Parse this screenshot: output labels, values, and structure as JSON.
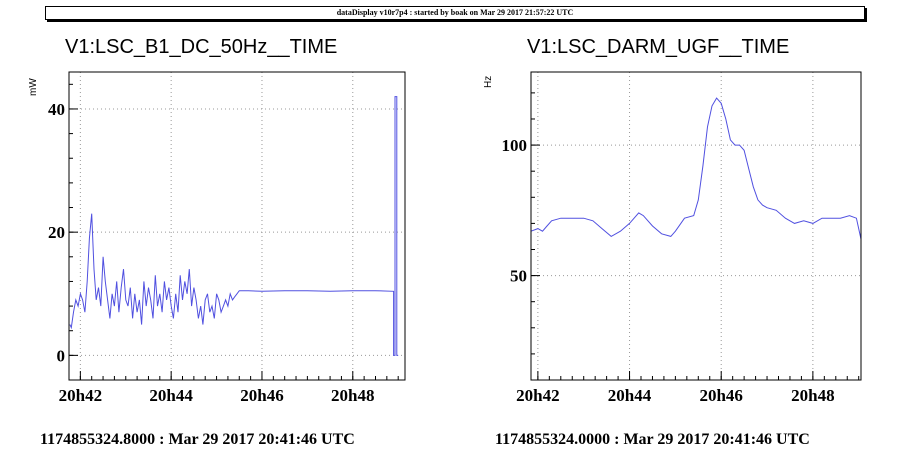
{
  "header": {
    "text": "dataDisplay v10r7p4 : started by boak on Mar 29 2017 21:57:22 UTC"
  },
  "chart_data": [
    {
      "type": "line",
      "title": "V1:LSC_B1_DC_50Hz__TIME",
      "ylabel": "mW",
      "footer": "1174855324.8000 : Mar 29 2017 20:41:46 UTC",
      "color": "#5050e0",
      "xlim": [
        41.75,
        49.15
      ],
      "ylim": [
        -4,
        46
      ],
      "xticks": [
        {
          "v": 42,
          "label": "20h42"
        },
        {
          "v": 44,
          "label": "20h44"
        },
        {
          "v": 46,
          "label": "20h46"
        },
        {
          "v": 48,
          "label": "20h48"
        }
      ],
      "yticks": [
        {
          "v": 0,
          "label": "0"
        },
        {
          "v": 20,
          "label": "20"
        },
        {
          "v": 40,
          "label": "40"
        }
      ],
      "x": [
        41.77,
        41.8,
        41.85,
        41.9,
        41.95,
        42.0,
        42.05,
        42.1,
        42.15,
        42.2,
        42.25,
        42.3,
        42.35,
        42.4,
        42.45,
        42.5,
        42.55,
        42.6,
        42.65,
        42.7,
        42.75,
        42.8,
        42.85,
        42.9,
        42.95,
        43.0,
        43.05,
        43.1,
        43.15,
        43.2,
        43.25,
        43.3,
        43.35,
        43.4,
        43.45,
        43.5,
        43.55,
        43.6,
        43.65,
        43.7,
        43.75,
        43.8,
        43.85,
        43.9,
        43.95,
        44.0,
        44.05,
        44.1,
        44.15,
        44.2,
        44.25,
        44.3,
        44.35,
        44.4,
        44.45,
        44.5,
        44.55,
        44.6,
        44.65,
        44.7,
        44.75,
        44.8,
        44.85,
        44.9,
        44.95,
        45.0,
        45.05,
        45.1,
        45.15,
        45.2,
        45.25,
        45.3,
        45.35,
        45.4,
        45.45,
        45.5,
        45.7,
        46.0,
        46.5,
        47.0,
        47.5,
        48.0,
        48.5,
        48.9,
        48.9,
        48.93,
        48.93,
        48.97,
        48.97,
        49.0
      ],
      "y": [
        5,
        4.5,
        7,
        9,
        8,
        10,
        9,
        7,
        12,
        19,
        23,
        14,
        9,
        11,
        8,
        16,
        12,
        9,
        6,
        10,
        8,
        12,
        7,
        11,
        14,
        9,
        8,
        11,
        6,
        10,
        7,
        9,
        5,
        12,
        8,
        11,
        9,
        6,
        13,
        8,
        10,
        7,
        12,
        9,
        11,
        8,
        6,
        10,
        7,
        13,
        9,
        12,
        10,
        14,
        8,
        11,
        9,
        6,
        8,
        5,
        9,
        10,
        7,
        8,
        6,
        10,
        9,
        7,
        8,
        9,
        8,
        10,
        9,
        9.5,
        10,
        10.5,
        10.5,
        10.4,
        10.5,
        10.5,
        10.4,
        10.5,
        10.5,
        10.4,
        0,
        0,
        42,
        42,
        0,
        0
      ]
    },
    {
      "type": "line",
      "title": "V1:LSC_DARM_UGF__TIME",
      "ylabel": "Hz",
      "footer": "1174855324.0000 : Mar 29 2017 20:41:46 UTC",
      "color": "#5050e0",
      "xlim": [
        41.85,
        49.05
      ],
      "ylim": [
        10,
        128
      ],
      "xticks": [
        {
          "v": 42,
          "label": "20h42"
        },
        {
          "v": 44,
          "label": "20h44"
        },
        {
          "v": 46,
          "label": "20h46"
        },
        {
          "v": 48,
          "label": "20h48"
        }
      ],
      "yticks": [
        {
          "v": 50,
          "label": "50"
        },
        {
          "v": 100,
          "label": "100"
        }
      ],
      "x": [
        41.85,
        42.0,
        42.1,
        42.2,
        42.3,
        42.5,
        42.8,
        43.0,
        43.2,
        43.4,
        43.6,
        43.8,
        44.0,
        44.2,
        44.3,
        44.5,
        44.7,
        44.9,
        45.0,
        45.2,
        45.4,
        45.5,
        45.6,
        45.7,
        45.8,
        45.9,
        46.0,
        46.1,
        46.2,
        46.3,
        46.4,
        46.5,
        46.6,
        46.7,
        46.8,
        46.9,
        47.0,
        47.2,
        47.4,
        47.6,
        47.8,
        48.0,
        48.2,
        48.4,
        48.6,
        48.8,
        48.95,
        49.05
      ],
      "y": [
        67,
        68,
        67,
        69,
        71,
        72,
        72,
        72,
        71,
        68,
        65,
        67,
        70,
        74,
        73,
        69,
        66,
        65,
        67,
        72,
        73,
        79,
        92,
        107,
        115,
        118,
        116,
        110,
        102,
        100,
        100,
        98,
        91,
        84,
        79,
        77,
        76,
        75,
        72,
        70,
        71,
        70,
        72,
        72,
        72,
        73,
        72,
        64
      ]
    }
  ]
}
